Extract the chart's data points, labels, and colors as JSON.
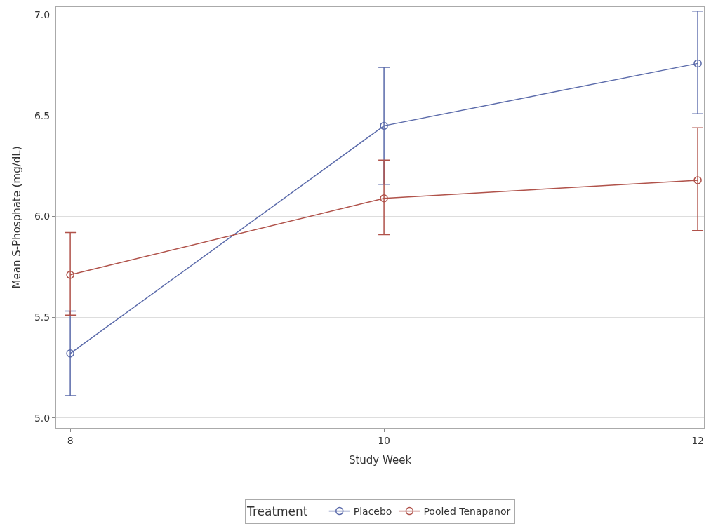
{
  "chart_data": {
    "type": "line",
    "xlabel": "Study Week",
    "ylabel": "Mean S-Phosphate (mg/dL)",
    "legend_title": "Treatment",
    "x": [
      8,
      10,
      12
    ],
    "series": [
      {
        "name": "Placebo",
        "color": "#5a6aaa",
        "values": [
          5.32,
          6.45,
          6.76
        ],
        "errors": [
          [
            5.11,
            5.53
          ],
          [
            6.16,
            6.74
          ],
          [
            6.51,
            7.02
          ]
        ]
      },
      {
        "name": "Pooled Tenapanor",
        "color": "#b0524a",
        "values": [
          5.71,
          6.09,
          6.18
        ],
        "errors": [
          [
            5.51,
            5.92
          ],
          [
            5.91,
            6.28
          ],
          [
            5.93,
            6.44
          ]
        ]
      }
    ],
    "xlim": [
      7.91,
      12.04
    ],
    "xticks": [
      8,
      10,
      12
    ],
    "ylim": [
      4.95,
      7.04
    ],
    "yticks": [
      {
        "value": 5.0,
        "label": "5.0"
      },
      {
        "value": 5.5,
        "label": "5.5"
      },
      {
        "value": 6.0,
        "label": "6.0"
      },
      {
        "value": 6.5,
        "label": "6.5"
      },
      {
        "value": 7.0,
        "label": "7.0"
      }
    ],
    "grid": "y",
    "legend": "bottom",
    "marker": "circle",
    "line_style": "solid"
  }
}
